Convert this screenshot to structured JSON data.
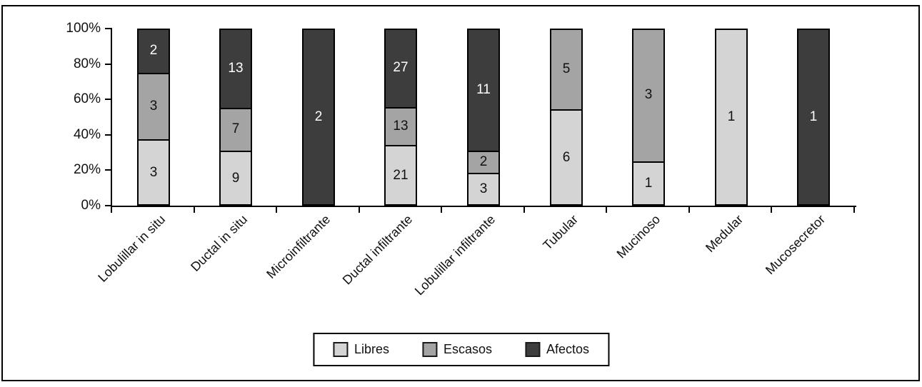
{
  "figure": {
    "background": "#ffffff",
    "border_color": "#000000"
  },
  "chart_data": {
    "type": "bar",
    "stacked": true,
    "percent_axis": true,
    "title": "",
    "xlabel": "",
    "ylabel": "",
    "ylim": [
      0,
      100
    ],
    "grid": false,
    "legend_position": "bottom",
    "y_ticks": [
      "0%",
      "20%",
      "40%",
      "60%",
      "80%",
      "100%"
    ],
    "categories": [
      "Lobulillar in situ",
      "Ductal in situ",
      "Microinfiltrante",
      "Ductal infiltrante",
      "Lobulillar infiltrante",
      "Tubular",
      "Mucinoso",
      "Medular",
      "Mucosecretor"
    ],
    "series": [
      {
        "name": "Libres",
        "color": "#d4d4d4",
        "label_color": "#111111",
        "values": [
          3,
          9,
          0,
          21,
          3,
          6,
          1,
          1,
          0
        ]
      },
      {
        "name": "Escasos",
        "color": "#a4a4a4",
        "label_color": "#111111",
        "values": [
          3,
          7,
          0,
          13,
          2,
          5,
          3,
          0,
          0
        ]
      },
      {
        "name": "Afectos",
        "color": "#3d3d3d",
        "label_color": "#ffffff",
        "values": [
          2,
          13,
          2,
          27,
          11,
          0,
          0,
          0,
          1
        ]
      }
    ]
  }
}
